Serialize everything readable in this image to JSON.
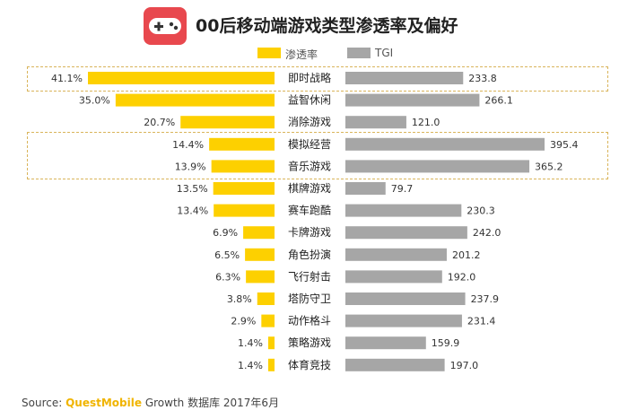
{
  "header": {
    "title": "00后移动端游戏类型渗透率及偏好",
    "icon": "gamepad-icon"
  },
  "legend": {
    "series1": "渗透率",
    "series2": "TGI"
  },
  "colors": {
    "penetration": "#fdd000",
    "tgi": "#a6a6a6",
    "icon_bg": "#e8484e",
    "highlight_border": "#d9b45a",
    "brand": "#f0b400"
  },
  "source": {
    "label": "Source:",
    "brand": "QuestMobile",
    "text": "Growth 数据库 2017年6月"
  },
  "chart_data": {
    "type": "bar",
    "categories": [
      "即时战略",
      "益智休闲",
      "消除游戏",
      "模拟经营",
      "音乐游戏",
      "棋牌游戏",
      "赛车跑酷",
      "卡牌游戏",
      "角色扮演",
      "飞行射击",
      "塔防守卫",
      "动作格斗",
      "策略游戏",
      "体育竞技"
    ],
    "series": [
      {
        "name": "渗透率",
        "values": [
          41.1,
          35.0,
          20.7,
          14.4,
          13.9,
          13.5,
          13.4,
          6.9,
          6.5,
          6.3,
          3.8,
          2.9,
          1.4,
          1.4
        ],
        "labels": [
          "41.1%",
          "35.0%",
          "20.7%",
          "14.4%",
          "13.9%",
          "13.5%",
          "13.4%",
          "6.9%",
          "6.5%",
          "6.3%",
          "3.8%",
          "2.9%",
          "1.4%",
          "1.4%"
        ]
      },
      {
        "name": "TGI",
        "values": [
          233.8,
          266.1,
          121.0,
          395.4,
          365.2,
          79.7,
          230.3,
          242.0,
          201.2,
          192.0,
          237.9,
          231.4,
          159.9,
          197.0
        ],
        "labels": [
          "233.8",
          "266.1",
          "121.0",
          "395.4",
          "365.2",
          "79.7",
          "230.3",
          "242.0",
          "201.2",
          "192.0",
          "237.9",
          "231.4",
          "159.9",
          "197.0"
        ]
      }
    ],
    "highlighted_categories": [
      [
        "即时战略"
      ],
      [
        "模拟经营",
        "音乐游戏"
      ]
    ],
    "grid": false
  }
}
